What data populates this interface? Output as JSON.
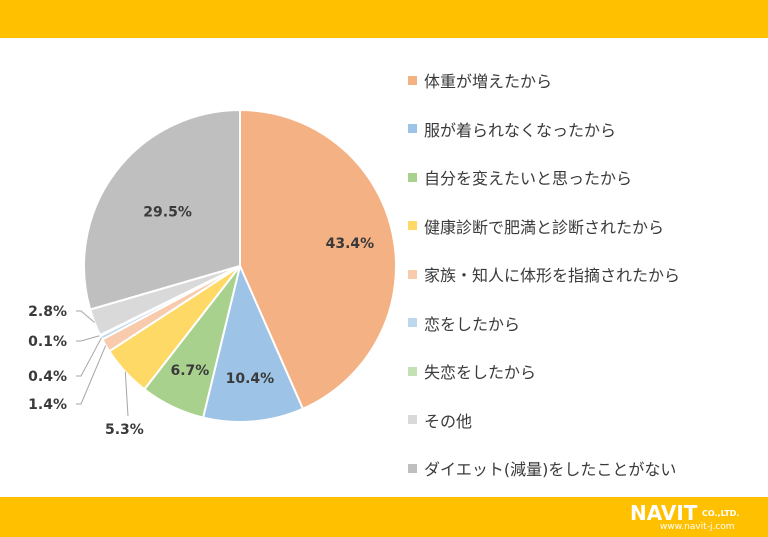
{
  "chart_data": {
    "type": "pie",
    "slices": [
      {
        "label": "体重が増えたから",
        "value": 43.4,
        "value_label": "43.4%",
        "color": "#F4B183"
      },
      {
        "label": "服が着られなくなったから",
        "value": 10.4,
        "value_label": "10.4%",
        "color": "#9DC3E6"
      },
      {
        "label": "自分を変えたいと思ったから",
        "value": 6.7,
        "value_label": "6.7%",
        "color": "#A9D18E"
      },
      {
        "label": "健康診断で肥満と診断されたから",
        "value": 5.3,
        "value_label": "5.3%",
        "color": "#FFD966"
      },
      {
        "label": "家族・知人に体形を指摘されたから",
        "value": 1.4,
        "value_label": "1.4%",
        "color": "#F8CBAD"
      },
      {
        "label": "恋をしたから",
        "value": 0.4,
        "value_label": "0.4%",
        "color": "#BDD7EE"
      },
      {
        "label": "失恋をしたから",
        "value": 0.1,
        "value_label": "0.1%",
        "color": "#C5E0B4"
      },
      {
        "label": "その他",
        "value": 2.8,
        "value_label": "2.8%",
        "color": "#D9D9D9"
      },
      {
        "label": "ダイエット(減量)をしたことがない",
        "value": 29.5,
        "value_label": "29.5%",
        "color": "#BFBFBF"
      }
    ],
    "legend_position": "right",
    "start_angle": "12 o'clock",
    "direction": "clockwise"
  },
  "colors": {
    "band": "#FFC000"
  },
  "logo": {
    "wordmark": "NAVIT",
    "company_suffix": "CO.,LTD.",
    "url": "www.navit-j.com"
  }
}
